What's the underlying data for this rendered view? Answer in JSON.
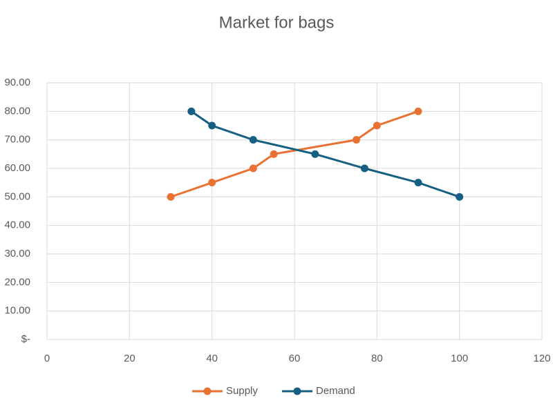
{
  "chart_data": {
    "type": "scatter-line",
    "title": "Market for bags",
    "xlim": [
      0,
      120
    ],
    "xticks": [
      0,
      20,
      40,
      60,
      80,
      100,
      120
    ],
    "ylim": [
      0,
      90
    ],
    "yticks": [
      {
        "value": 0,
        "label": "$-"
      },
      {
        "value": 10,
        "label": "10.00"
      },
      {
        "value": 20,
        "label": "20.00"
      },
      {
        "value": 30,
        "label": "30.00"
      },
      {
        "value": 40,
        "label": "40.00"
      },
      {
        "value": 50,
        "label": "50.00"
      },
      {
        "value": 60,
        "label": "60.00"
      },
      {
        "value": 70,
        "label": "70.00"
      },
      {
        "value": 80,
        "label": "80.00"
      },
      {
        "value": 90,
        "label": "90.00"
      }
    ],
    "grid": true,
    "legend": "bottom",
    "series": [
      {
        "name": "Supply",
        "color": "#e97132",
        "x": [
          30,
          40,
          50,
          55,
          75,
          80,
          90
        ],
        "values": [
          50,
          55,
          60,
          65,
          70,
          75,
          80
        ]
      },
      {
        "name": "Demand",
        "color": "#156082",
        "x": [
          35,
          40,
          50,
          65,
          77,
          90,
          100
        ],
        "values": [
          80,
          75,
          70,
          65,
          60,
          55,
          50
        ]
      }
    ]
  }
}
